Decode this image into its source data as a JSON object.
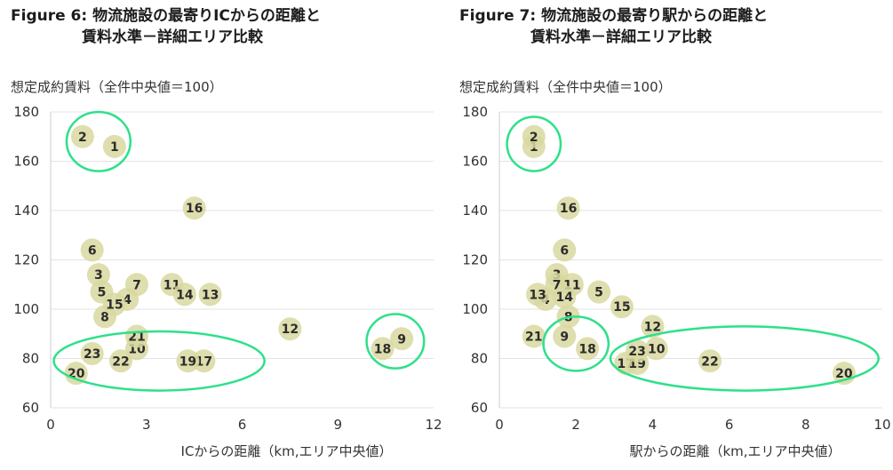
{
  "chart_data": [
    {
      "type": "scatter",
      "title_num": "Figure 6:",
      "title_line1": "物流施設の最寄りICからの距離と",
      "title_line2": "賃料水準－詳細エリア比較",
      "ylabel": "想定成約賃料（全件中央値＝100）",
      "xlabel": "ICからの距離（km,エリア中央値）",
      "xlim": [
        0,
        12
      ],
      "ylim": [
        60,
        180
      ],
      "xticks": [
        0,
        3,
        6,
        9,
        12
      ],
      "yticks": [
        60,
        80,
        100,
        120,
        140,
        160,
        180
      ],
      "grid": "horizontal",
      "point_color": "#d8d8a0",
      "highlight_color": "#2ee08a",
      "points": [
        {
          "label": "1",
          "x": 2.0,
          "y": 166
        },
        {
          "label": "2",
          "x": 1.0,
          "y": 170
        },
        {
          "label": "3",
          "x": 1.5,
          "y": 114
        },
        {
          "label": "4",
          "x": 2.4,
          "y": 104
        },
        {
          "label": "5",
          "x": 1.6,
          "y": 107
        },
        {
          "label": "6",
          "x": 1.3,
          "y": 124
        },
        {
          "label": "7",
          "x": 2.7,
          "y": 110
        },
        {
          "label": "8",
          "x": 1.7,
          "y": 97
        },
        {
          "label": "9",
          "x": 11.0,
          "y": 88
        },
        {
          "label": "10",
          "x": 2.7,
          "y": 84
        },
        {
          "label": "11",
          "x": 3.8,
          "y": 110
        },
        {
          "label": "12",
          "x": 7.5,
          "y": 92
        },
        {
          "label": "13",
          "x": 5.0,
          "y": 106
        },
        {
          "label": "14",
          "x": 4.2,
          "y": 106
        },
        {
          "label": "15",
          "x": 2.0,
          "y": 102
        },
        {
          "label": "16",
          "x": 4.5,
          "y": 141
        },
        {
          "label": "17",
          "x": 4.8,
          "y": 79
        },
        {
          "label": "18",
          "x": 10.4,
          "y": 84
        },
        {
          "label": "19",
          "x": 4.3,
          "y": 79
        },
        {
          "label": "20",
          "x": 0.8,
          "y": 74
        },
        {
          "label": "21",
          "x": 2.7,
          "y": 89
        },
        {
          "label": "22",
          "x": 2.2,
          "y": 79
        },
        {
          "label": "23",
          "x": 1.3,
          "y": 82
        }
      ],
      "highlights": [
        {
          "cx": 1.5,
          "cy": 168,
          "rx": 1.0,
          "ry": 12
        },
        {
          "cx": 10.8,
          "cy": 87,
          "rx": 0.9,
          "ry": 11
        },
        {
          "cx": 3.4,
          "cy": 79,
          "rx": 3.3,
          "ry": 12
        }
      ]
    },
    {
      "type": "scatter",
      "title_num": "Figure 7:",
      "title_line1": "物流施設の最寄り駅からの距離と",
      "title_line2": "賃料水準－詳細エリア比較",
      "ylabel": "想定成約賃料（全件中央値＝100）",
      "xlabel": "駅からの距離（km,エリア中央値）",
      "xlim": [
        0,
        10
      ],
      "ylim": [
        60,
        180
      ],
      "xticks": [
        0,
        2,
        4,
        6,
        8,
        10
      ],
      "yticks": [
        60,
        80,
        100,
        120,
        140,
        160,
        180
      ],
      "grid": "horizontal",
      "point_color": "#d8d8a0",
      "highlight_color": "#2ee08a",
      "points": [
        {
          "label": "1",
          "x": 0.9,
          "y": 166
        },
        {
          "label": "2",
          "x": 0.9,
          "y": 170
        },
        {
          "label": "3",
          "x": 1.5,
          "y": 114
        },
        {
          "label": "4",
          "x": 1.2,
          "y": 104
        },
        {
          "label": "5",
          "x": 2.6,
          "y": 107
        },
        {
          "label": "6",
          "x": 1.7,
          "y": 124
        },
        {
          "label": "7",
          "x": 1.5,
          "y": 110
        },
        {
          "label": "8",
          "x": 1.8,
          "y": 97
        },
        {
          "label": "9",
          "x": 1.7,
          "y": 89
        },
        {
          "label": "10",
          "x": 4.1,
          "y": 84
        },
        {
          "label": "11",
          "x": 1.9,
          "y": 110
        },
        {
          "label": "12",
          "x": 4.0,
          "y": 93
        },
        {
          "label": "13",
          "x": 1.0,
          "y": 106
        },
        {
          "label": "14",
          "x": 1.7,
          "y": 105
        },
        {
          "label": "15",
          "x": 3.2,
          "y": 101
        },
        {
          "label": "16",
          "x": 1.8,
          "y": 141
        },
        {
          "label": "17",
          "x": 3.3,
          "y": 78
        },
        {
          "label": "18",
          "x": 2.3,
          "y": 84
        },
        {
          "label": "19",
          "x": 3.6,
          "y": 78
        },
        {
          "label": "20",
          "x": 9.0,
          "y": 74
        },
        {
          "label": "21",
          "x": 0.9,
          "y": 89
        },
        {
          "label": "22",
          "x": 5.5,
          "y": 79
        },
        {
          "label": "23",
          "x": 3.6,
          "y": 83
        }
      ],
      "highlights": [
        {
          "cx": 0.9,
          "cy": 167,
          "rx": 0.7,
          "ry": 11
        },
        {
          "cx": 2.0,
          "cy": 86,
          "rx": 0.85,
          "ry": 11
        },
        {
          "cx": 6.4,
          "cy": 80,
          "rx": 3.5,
          "ry": 13
        }
      ]
    }
  ]
}
